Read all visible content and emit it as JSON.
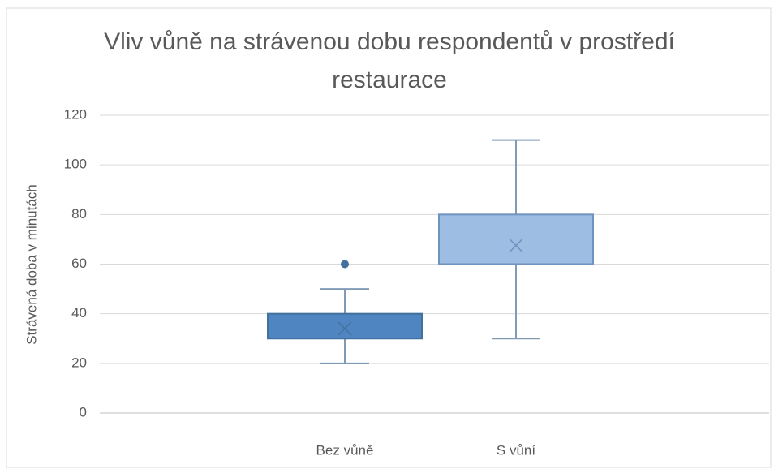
{
  "chart_data": {
    "type": "box",
    "title": "Vliv vůně na strávenou dobu respondentů v prostředí restaurace",
    "y_label": "Strávená doba v minutách",
    "categories": [
      "Bez vůně",
      "S vůní"
    ],
    "series": [
      {
        "name": "Bez vůně",
        "color": "#4f86c1",
        "stroke": "#41719c",
        "min": 20,
        "q1": 30,
        "q3": 40,
        "max": 50,
        "mean": 34,
        "outliers": [
          60
        ]
      },
      {
        "name": "S vůní",
        "color": "#9dbde3",
        "stroke": "#6f93bf",
        "min": 30,
        "q1": 60,
        "q3": 80,
        "max": 110,
        "mean": 67.5,
        "outliers": []
      }
    ],
    "ylim": [
      0,
      120
    ],
    "yticks": [
      0,
      20,
      40,
      60,
      80,
      100,
      120
    ],
    "grid": true
  }
}
